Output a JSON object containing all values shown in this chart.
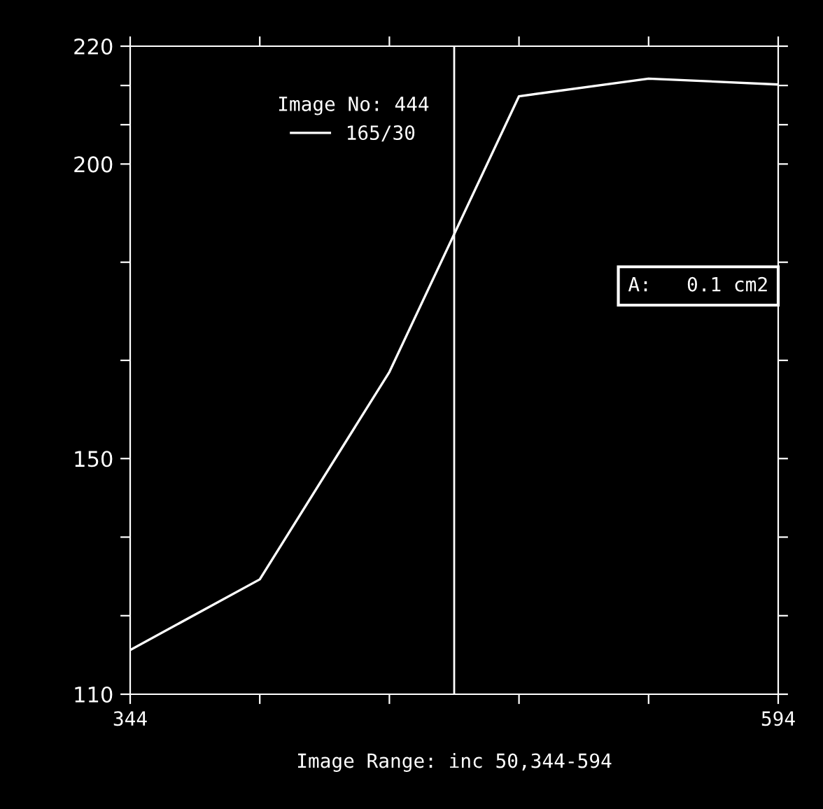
{
  "chart_data": {
    "type": "line",
    "xlabel": "Image Range: inc 50,344-594",
    "legend_title": "Image No: 444",
    "x": [
      344,
      394,
      444,
      494,
      544,
      594
    ],
    "series": [
      {
        "name": "165/30",
        "color": "#ffffff",
        "values": [
          117.5,
          129.5,
          164.7,
          211.5,
          214.5,
          213.5
        ]
      }
    ],
    "xlim": [
      344,
      594
    ],
    "xticks": [
      344,
      {
        "value": 394,
        "label": null
      },
      {
        "value": 444,
        "label": null
      },
      {
        "value": 494,
        "label": null
      },
      {
        "value": 544,
        "label": null
      },
      594
    ],
    "ylim": [
      110,
      220
    ],
    "yticks": [
      110,
      {
        "value": 123.33,
        "label": null
      },
      {
        "value": 136.67,
        "label": null
      },
      150,
      {
        "value": 166.67,
        "label": null
      },
      {
        "value": 183.33,
        "label": null
      },
      200,
      {
        "value": 206.67,
        "label": null
      },
      {
        "value": 213.33,
        "label": null
      },
      220
    ],
    "ref_lines": [
      {
        "axis": "x",
        "value": 469,
        "color": "#ffffff"
      }
    ],
    "annotations": [
      "A:   0.1 cm2"
    ],
    "grid": false,
    "legend": "top left",
    "marker": "none",
    "line_style": "solid"
  }
}
